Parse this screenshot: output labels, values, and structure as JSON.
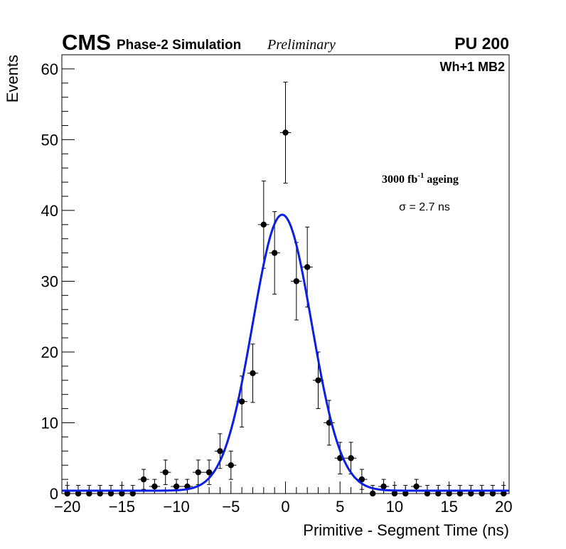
{
  "header": {
    "experiment": "CMS",
    "subtitle": "Phase-2 Simulation",
    "status": "Preliminary",
    "pileup": "PU 200"
  },
  "panel": {
    "station": "Wh+1 MB2",
    "ageing_value": "3000 fb",
    "ageing_exponent": "-1",
    "ageing_suffix": " ageing",
    "sigma_label": "σ = 2.7 ns"
  },
  "chart_data": {
    "type": "scatter",
    "title": "",
    "xlabel": "Primitive - Segment Time (ns)",
    "ylabel": "Events",
    "xlim": [
      -20.5,
      20.5
    ],
    "ylim": [
      0,
      62
    ],
    "x_ticks": [
      -20,
      -15,
      -10,
      -5,
      0,
      5,
      10,
      15,
      20
    ],
    "x_tick_labels": [
      "−20",
      "−15",
      "−10",
      "−5",
      "0",
      "5",
      "10",
      "15",
      "20"
    ],
    "y_ticks": [
      0,
      10,
      20,
      30,
      40,
      50,
      60
    ],
    "y_tick_labels": [
      "0",
      "10",
      "20",
      "30",
      "40",
      "50",
      "60"
    ],
    "grid": false,
    "series": [
      {
        "name": "data",
        "style": "points-with-errors",
        "color": "#000000",
        "x": [
          -20,
          -19,
          -18,
          -17,
          -16,
          -15,
          -14,
          -13,
          -12,
          -11,
          -10,
          -9,
          -8,
          -7,
          -6,
          -5,
          -4,
          -3,
          -2,
          -1,
          0,
          1,
          2,
          3,
          4,
          5,
          6,
          7,
          8,
          9,
          10,
          11,
          12,
          13,
          14,
          15,
          16,
          17,
          18,
          19,
          20
        ],
        "y": [
          0,
          0,
          0,
          0,
          0,
          0,
          0,
          2,
          1,
          3,
          1,
          1,
          3,
          3,
          6,
          4,
          13,
          17,
          38,
          34,
          51,
          30,
          32,
          16,
          10,
          5,
          5,
          2,
          0,
          1,
          0,
          0,
          1,
          0,
          0,
          0,
          0,
          0,
          0,
          0,
          0
        ]
      },
      {
        "name": "gaussian fit",
        "style": "line",
        "color": "#0a1ee6",
        "function": "gaussian",
        "amplitude": 39,
        "mean": -0.3,
        "sigma": 2.7,
        "baseline": 0.4
      }
    ]
  }
}
